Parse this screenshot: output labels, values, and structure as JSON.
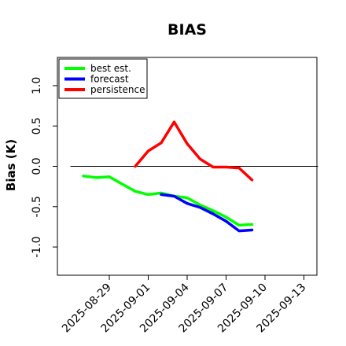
{
  "chart_data": {
    "type": "line",
    "title": "BIAS",
    "ylabel": "Bias (K)",
    "xlabel": "",
    "xlim": [
      "2025-08-25",
      "2025-09-14"
    ],
    "ylim": [
      -1.35,
      1.35
    ],
    "yticks": [
      -1.0,
      -0.5,
      0.0,
      0.5,
      1.0
    ],
    "yticklabels": [
      "-1.0",
      "-0.5",
      "0.0",
      "0.5",
      "1.0"
    ],
    "xticks": [
      "2025-08-29",
      "2025-09-01",
      "2025-09-04",
      "2025-09-07",
      "2025-09-10",
      "2025-09-13"
    ],
    "highlighted_xtick": "2025-09-04",
    "highlight_color": "#228B22",
    "hline": 0.0,
    "grid": false,
    "legend_position": "top-left",
    "series": [
      {
        "name": "best est.",
        "color": "#00ff00",
        "points": [
          [
            "2025-08-27",
            -0.12
          ],
          [
            "2025-08-28",
            -0.14
          ],
          [
            "2025-08-29",
            -0.13
          ],
          [
            "2025-08-30",
            -0.22
          ],
          [
            "2025-08-31",
            -0.31
          ],
          [
            "2025-09-01",
            -0.35
          ],
          [
            "2025-09-02",
            -0.33
          ],
          [
            "2025-09-03",
            -0.37
          ],
          [
            "2025-09-04",
            -0.39
          ],
          [
            "2025-09-05",
            -0.48
          ],
          [
            "2025-09-06",
            -0.55
          ],
          [
            "2025-09-07",
            -0.63
          ],
          [
            "2025-09-08",
            -0.73
          ],
          [
            "2025-09-09",
            -0.72
          ]
        ]
      },
      {
        "name": "forecast",
        "color": "#0000ff",
        "points": [
          [
            "2025-09-02",
            -0.35
          ],
          [
            "2025-09-03",
            -0.37
          ],
          [
            "2025-09-04",
            -0.46
          ],
          [
            "2025-09-05",
            -0.51
          ],
          [
            "2025-09-06",
            -0.59
          ],
          [
            "2025-09-07",
            -0.68
          ],
          [
            "2025-09-08",
            -0.8
          ],
          [
            "2025-09-09",
            -0.79
          ]
        ]
      },
      {
        "name": "persistence",
        "color": "#ff0000",
        "points": [
          [
            "2025-08-31",
            0.0
          ],
          [
            "2025-09-01",
            0.19
          ],
          [
            "2025-09-02",
            0.29
          ],
          [
            "2025-09-03",
            0.55
          ],
          [
            "2025-09-04",
            0.28
          ],
          [
            "2025-09-05",
            0.09
          ],
          [
            "2025-09-06",
            -0.01
          ],
          [
            "2025-09-07",
            -0.01
          ],
          [
            "2025-09-08",
            -0.02
          ],
          [
            "2025-09-09",
            -0.17
          ]
        ]
      }
    ]
  }
}
